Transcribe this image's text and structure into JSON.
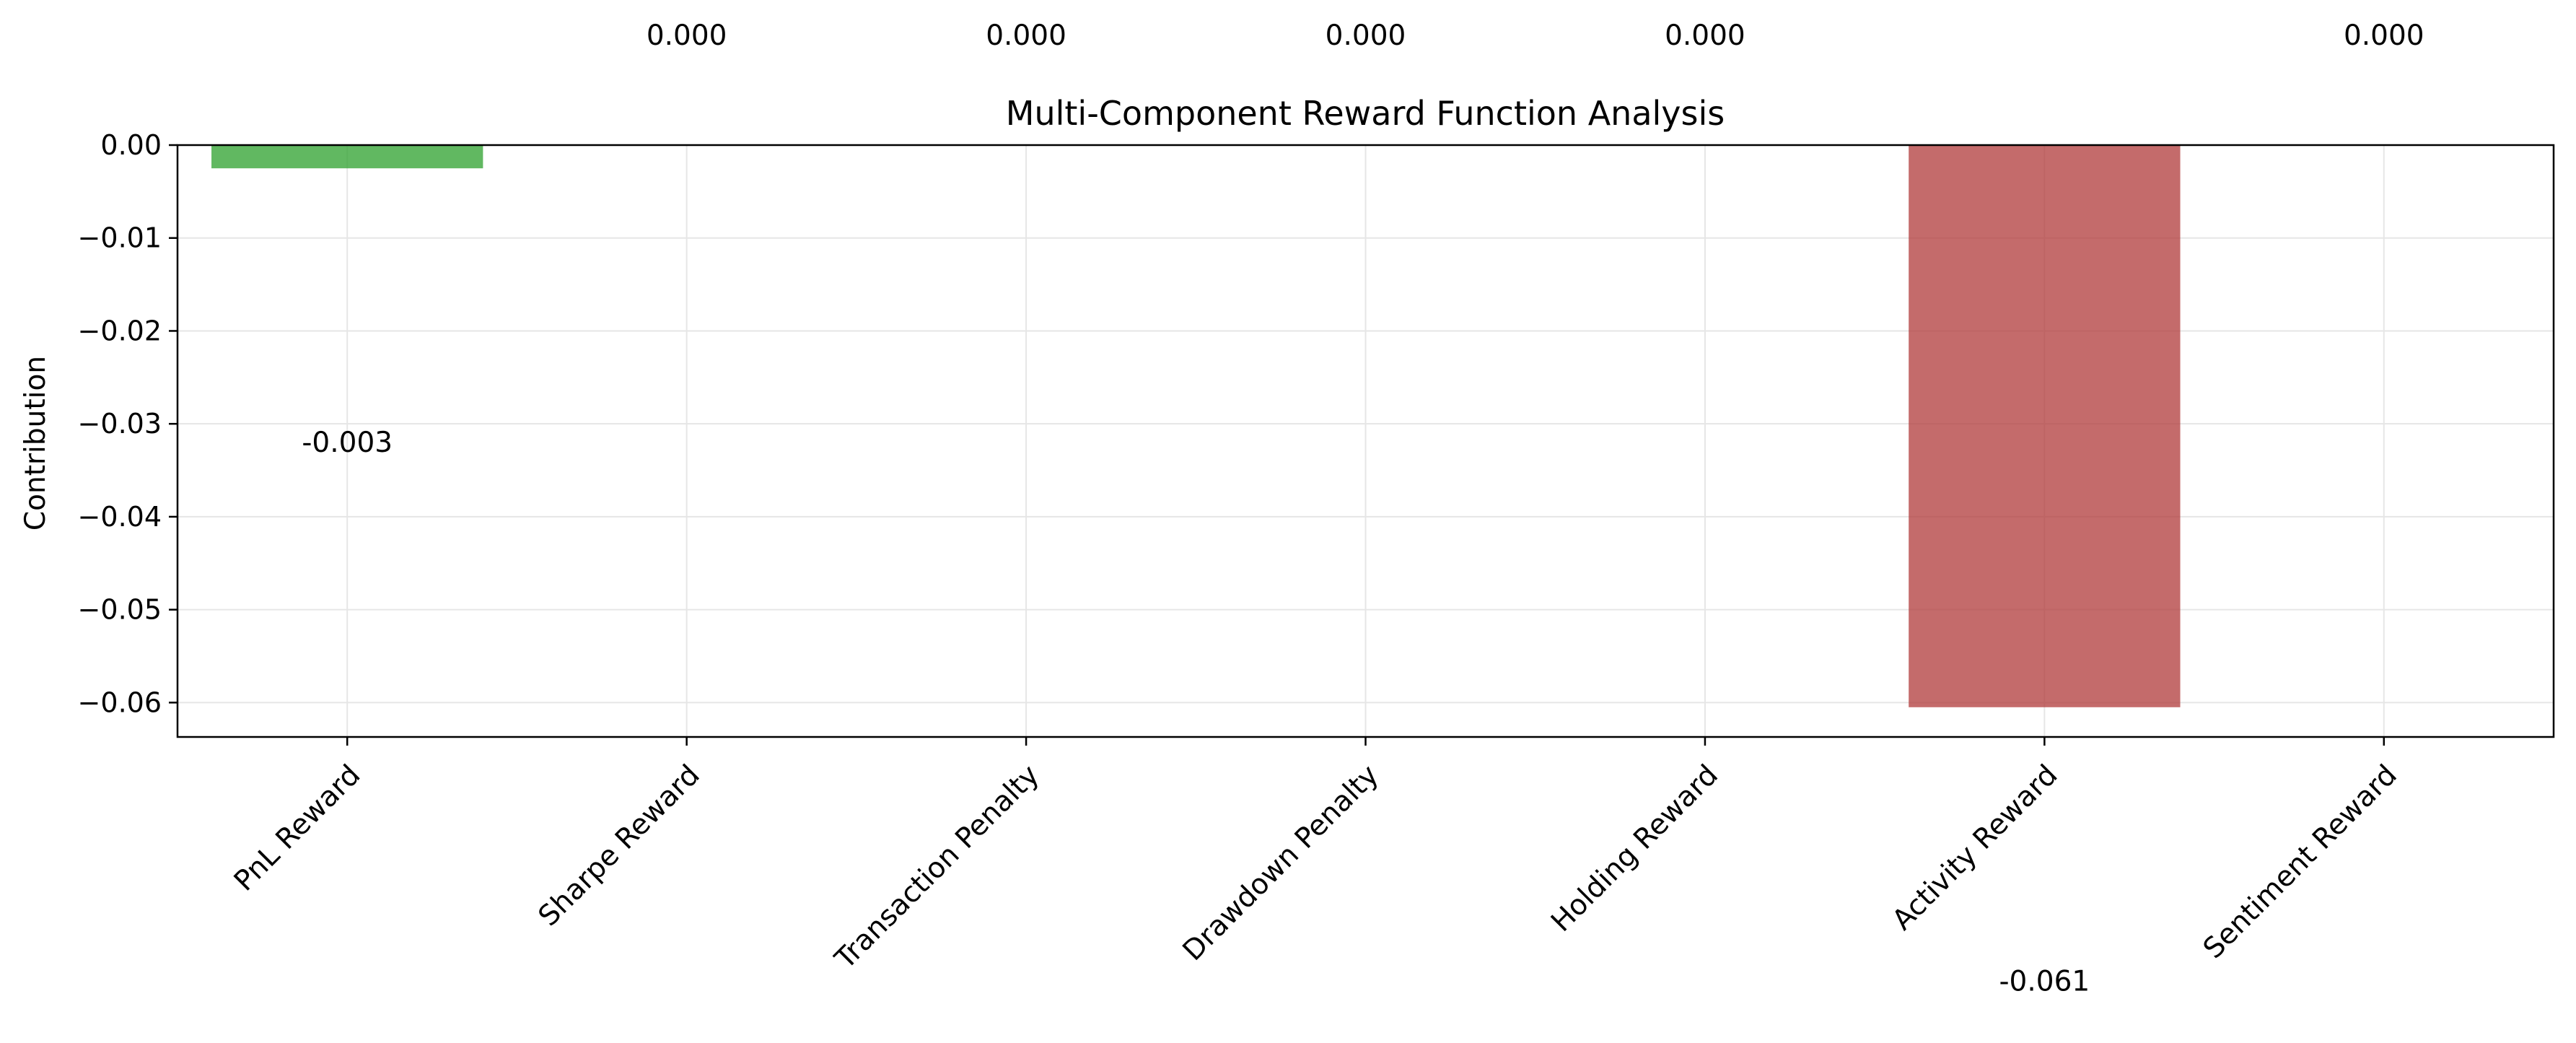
{
  "chart_data": {
    "type": "bar",
    "title": "Multi-Component Reward Function Analysis",
    "xlabel": "",
    "ylabel": "Contribution",
    "categories": [
      "PnL Reward",
      "Sharpe Reward",
      "Transaction Penalty",
      "Drawdown Penalty",
      "Holding Reward",
      "Activity Reward",
      "Sentiment Reward"
    ],
    "values": [
      -0.0025,
      0.0,
      0.0,
      0.0,
      0.0,
      -0.0605,
      0.0
    ],
    "value_labels": [
      "-0.003",
      "0.000",
      "0.000",
      "0.000",
      "0.000",
      "-0.061",
      "0.000"
    ],
    "ylim": [
      -0.0637,
      0.0
    ],
    "yticks": [
      0.0,
      -0.01,
      -0.02,
      -0.03,
      -0.04,
      -0.05,
      -0.06
    ],
    "ytick_labels": [
      "0.00",
      "−0.01",
      "−0.02",
      "−0.03",
      "−0.04",
      "−0.05",
      "−0.06"
    ],
    "grid": true,
    "colors": {
      "positive_bar": "#2ca02c",
      "negative_bar": "#b03a3a",
      "grid": "#e6e6e6",
      "axes": "#000000"
    }
  }
}
